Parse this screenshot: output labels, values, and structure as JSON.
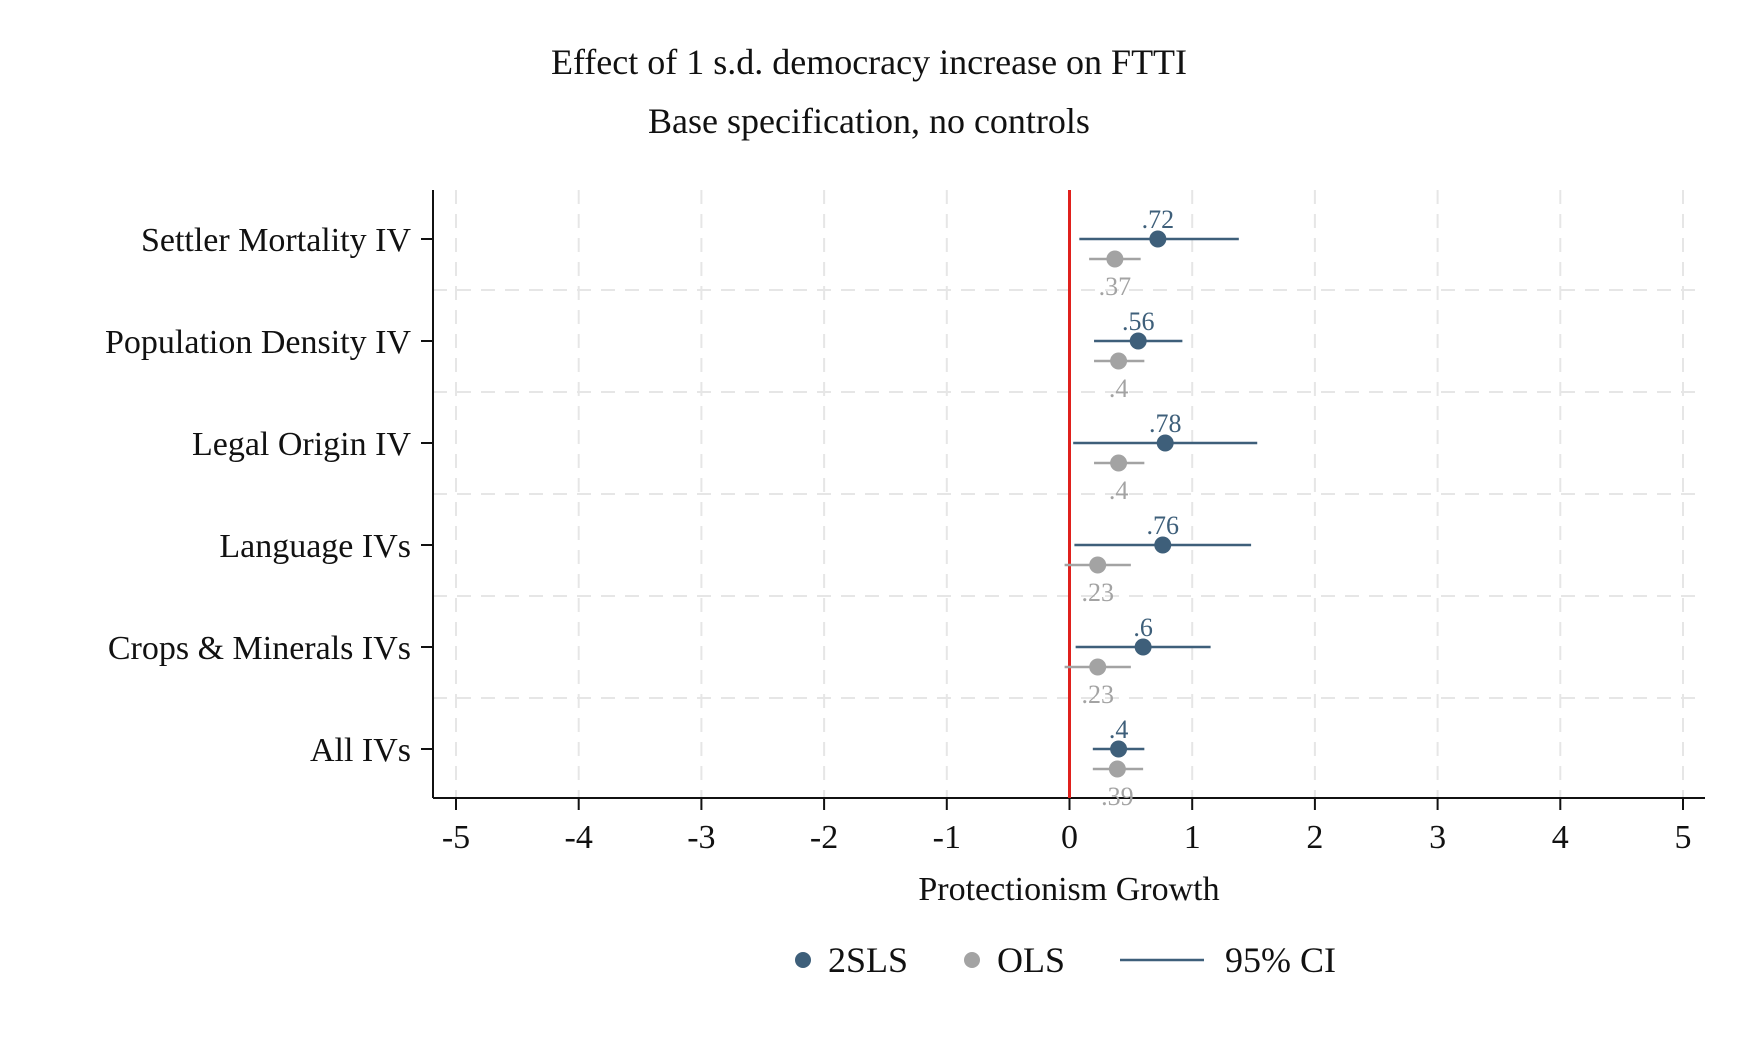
{
  "chart_data": {
    "type": "scatter",
    "title": "Effect of 1 s.d. democracy increase on FTTI",
    "subtitle": "Base specification, no controls",
    "xlabel": "Protectionism Growth",
    "ylabel": "",
    "xlim": [
      -5,
      5
    ],
    "xticks": [
      "-5",
      "-4",
      "-3",
      "-2",
      "-1",
      "0",
      "1",
      "2",
      "3",
      "4",
      "5"
    ],
    "reference_line": 0,
    "reference_line_color": "#e0201c",
    "grid": true,
    "legend_position": "bottom",
    "colors": {
      "2SLS": "#3e5f7a",
      "OLS": "#a3a3a3",
      "ci": "#3e5f7a"
    },
    "categories": [
      "Settler Mortality IV",
      "Population Density IV",
      "Legal Origin IV",
      "Language IVs",
      "Crops & Minerals IVs",
      "All IVs"
    ],
    "series": [
      {
        "name": "2SLS",
        "values": [
          0.72,
          0.56,
          0.78,
          0.76,
          0.6,
          0.4
        ],
        "labels": [
          ".72",
          ".56",
          ".78",
          ".76",
          ".6",
          ".4"
        ],
        "ci_low": [
          0.08,
          0.2,
          0.03,
          0.04,
          0.05,
          0.19
        ],
        "ci_high": [
          1.38,
          0.92,
          1.53,
          1.48,
          1.15,
          0.61
        ]
      },
      {
        "name": "OLS",
        "values": [
          0.37,
          0.4,
          0.4,
          0.23,
          0.23,
          0.39
        ],
        "labels": [
          ".37",
          ".4",
          ".4",
          ".23",
          ".23",
          ".39"
        ],
        "ci_low": [
          0.16,
          0.2,
          0.2,
          -0.04,
          -0.04,
          0.19
        ],
        "ci_high": [
          0.58,
          0.61,
          0.61,
          0.5,
          0.5,
          0.6
        ]
      }
    ],
    "legend": [
      "2SLS",
      "OLS",
      "95% CI"
    ]
  }
}
